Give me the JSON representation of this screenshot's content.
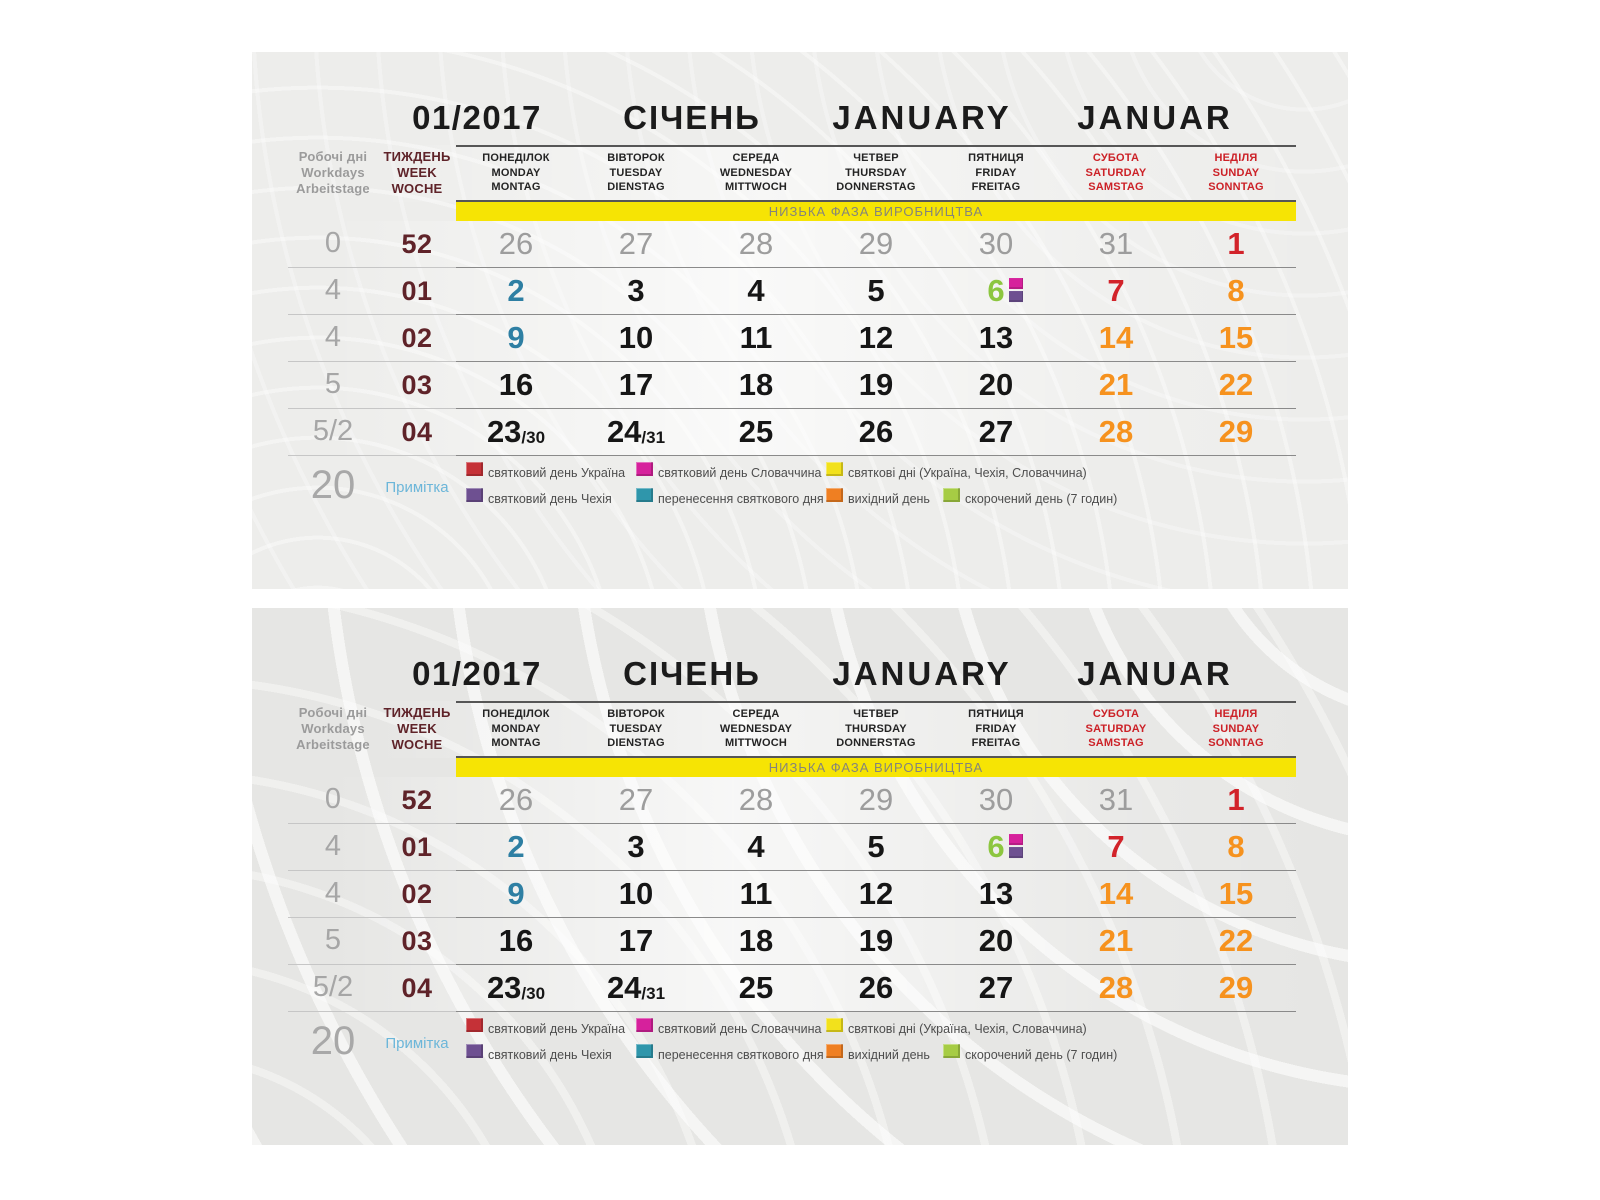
{
  "calendar": {
    "title": {
      "period": "01/2017",
      "month_uk": "СІЧЕНЬ",
      "month_en": "JANUARY",
      "month_de": "JANUAR"
    },
    "workdays_header": {
      "uk": "Робочі дні",
      "en": "Workdays",
      "de": "Arbeitstage"
    },
    "week_header": {
      "uk": "ТИЖДЕНЬ",
      "en": "WEEK",
      "de": "WOCHE"
    },
    "weekdays": [
      {
        "uk": "ПОНЕДІЛОК",
        "en": "MONDAY",
        "de": "MONTAG",
        "weekend": false
      },
      {
        "uk": "ВІВТОРОК",
        "en": "TUESDAY",
        "de": "DIENSTAG",
        "weekend": false
      },
      {
        "uk": "СЕРЕДА",
        "en": "WEDNESDAY",
        "de": "MITTWOCH",
        "weekend": false
      },
      {
        "uk": "ЧЕТВЕР",
        "en": "THURSDAY",
        "de": "DONNERSTAG",
        "weekend": false
      },
      {
        "uk": "ПЯТНИЦЯ",
        "en": "FRIDAY",
        "de": "FREITAG",
        "weekend": false
      },
      {
        "uk": "СУБОТА",
        "en": "SATURDAY",
        "de": "SAMSTAG",
        "weekend": true
      },
      {
        "uk": "НЕДІЛЯ",
        "en": "SUNDAY",
        "de": "SONNTAG",
        "weekend": true
      }
    ],
    "banner": "НИЗЬКА ФАЗА ВИРОБНИЦТВА",
    "weeks": [
      {
        "workdays": "0",
        "week": "52",
        "days": [
          {
            "day": "26",
            "style": "prev"
          },
          {
            "day": "27",
            "style": "prev"
          },
          {
            "day": "28",
            "style": "prev"
          },
          {
            "day": "29",
            "style": "prev"
          },
          {
            "day": "30",
            "style": "prev"
          },
          {
            "day": "31",
            "style": "prev"
          },
          {
            "day": "1",
            "style": "holiday-ua"
          }
        ]
      },
      {
        "workdays": "4",
        "week": "01",
        "days": [
          {
            "day": "2",
            "style": "moved"
          },
          {
            "day": "3",
            "style": "work"
          },
          {
            "day": "4",
            "style": "work"
          },
          {
            "day": "5",
            "style": "work"
          },
          {
            "day": "6",
            "style": "short",
            "marks": [
              "sk",
              "cz"
            ]
          },
          {
            "day": "7",
            "style": "holiday-ua"
          },
          {
            "day": "8",
            "style": "weekend"
          }
        ]
      },
      {
        "workdays": "4",
        "week": "02",
        "days": [
          {
            "day": "9",
            "style": "moved"
          },
          {
            "day": "10",
            "style": "work"
          },
          {
            "day": "11",
            "style": "work"
          },
          {
            "day": "12",
            "style": "work"
          },
          {
            "day": "13",
            "style": "work"
          },
          {
            "day": "14",
            "style": "weekend"
          },
          {
            "day": "15",
            "style": "weekend"
          }
        ]
      },
      {
        "workdays": "5",
        "week": "03",
        "days": [
          {
            "day": "16",
            "style": "work"
          },
          {
            "day": "17",
            "style": "work"
          },
          {
            "day": "18",
            "style": "work"
          },
          {
            "day": "19",
            "style": "work"
          },
          {
            "day": "20",
            "style": "work"
          },
          {
            "day": "21",
            "style": "weekend"
          },
          {
            "day": "22",
            "style": "weekend"
          }
        ]
      },
      {
        "workdays": "5/2",
        "week": "04",
        "days": [
          {
            "day": "23",
            "extra": "/30",
            "style": "work"
          },
          {
            "day": "24",
            "extra": "/31",
            "style": "work"
          },
          {
            "day": "25",
            "style": "work"
          },
          {
            "day": "26",
            "style": "work"
          },
          {
            "day": "27",
            "style": "work"
          },
          {
            "day": "28",
            "style": "weekend"
          },
          {
            "day": "29",
            "style": "weekend"
          }
        ]
      }
    ],
    "note": {
      "workdays_total": "20",
      "label": "Примітка"
    },
    "legend": {
      "row1": [
        {
          "key": "ua",
          "label": "святковий день Україна"
        },
        {
          "key": "sk",
          "label": "святковий день Словаччина"
        },
        {
          "key": "all",
          "label": "святкові дні (Україна, Чехія, Словаччина)"
        }
      ],
      "row2": [
        {
          "key": "cz",
          "label": "святковий день Чехія"
        },
        {
          "key": "moved",
          "label": "перенесення святкового дня"
        },
        {
          "key": "dayoff",
          "label": "вихідний день"
        },
        {
          "key": "short",
          "label": "скорочений день (7 годин)"
        }
      ]
    },
    "legend_colors": {
      "ua": "#c53137",
      "sk": "#d6219c",
      "all": "#f2e11c",
      "cz": "#6e5091",
      "moved": "#2f96ab",
      "dayoff": "#ef7f22",
      "short": "#a6cc44"
    },
    "colors": {
      "holiday_red": "#d2232a",
      "weekend_orange": "#f6921e",
      "moved_teal": "#2e7fa3",
      "short_green": "#8cc63f",
      "week_maroon": "#5f2329",
      "banner_yellow": "#f6e404",
      "weekend_header_red": "#cc2127",
      "note_blue": "#6cb6d9"
    }
  }
}
